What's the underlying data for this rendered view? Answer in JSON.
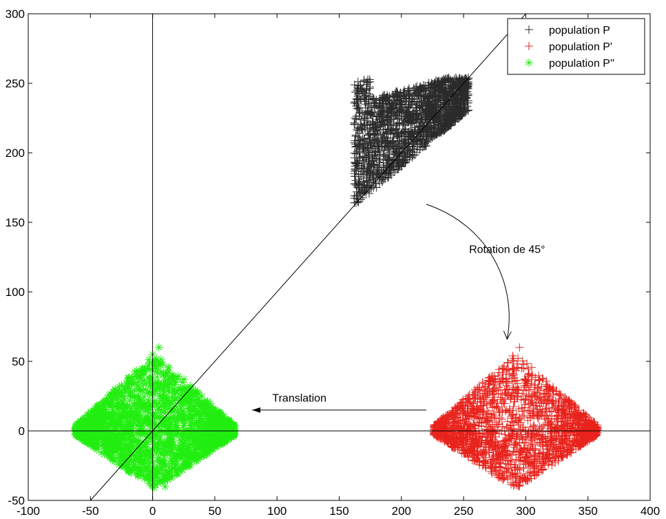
{
  "chart_data": {
    "type": "scatter",
    "title": "",
    "xlabel": "",
    "ylabel": "",
    "xlim": [
      -100,
      400
    ],
    "ylim": [
      -50,
      300
    ],
    "xticks": [
      -100,
      -50,
      0,
      50,
      100,
      150,
      200,
      250,
      300,
      350,
      400
    ],
    "yticks": [
      -50,
      0,
      50,
      100,
      150,
      200,
      250,
      300
    ],
    "xtick_labels": [
      "-100",
      "-50",
      "0",
      "50",
      "100",
      "150",
      "200",
      "250",
      "300",
      "350",
      "400"
    ],
    "ytick_labels": [
      "-50",
      "0",
      "50",
      "100",
      "150",
      "200",
      "250",
      "300"
    ],
    "grid": false,
    "legend_position": "top-right",
    "series": [
      {
        "name": "population P",
        "marker": "+",
        "color": "#2b2b2b",
        "points": [
          [
            165,
            165
          ],
          [
            180,
            175
          ],
          [
            200,
            190
          ],
          [
            220,
            205
          ],
          [
            240,
            220
          ],
          [
            250,
            245
          ],
          [
            170,
            240
          ],
          [
            230,
            250
          ],
          [
            210,
            230
          ],
          [
            190,
            200
          ]
        ],
        "extent_x": [
          160,
          255
        ],
        "extent_y": [
          160,
          255
        ]
      },
      {
        "name": "population P'",
        "marker": "+",
        "color": "#e8231c",
        "points": [
          [
            225,
            0
          ],
          [
            260,
            10
          ],
          [
            290,
            50
          ],
          [
            295,
            60
          ],
          [
            310,
            -30
          ],
          [
            330,
            20
          ],
          [
            355,
            0
          ],
          [
            300,
            -35
          ],
          [
            280,
            -20
          ],
          [
            320,
            5
          ]
        ],
        "extent_x": [
          225,
          358
        ],
        "extent_y": [
          -40,
          60
        ]
      },
      {
        "name": "population P''",
        "marker": "*",
        "color": "#22ee11",
        "points": [
          [
            -62,
            0
          ],
          [
            -30,
            30
          ],
          [
            0,
            55
          ],
          [
            5,
            60
          ],
          [
            20,
            -30
          ],
          [
            40,
            15
          ],
          [
            65,
            0
          ],
          [
            10,
            -40
          ],
          [
            -20,
            -20
          ],
          [
            30,
            -5
          ]
        ],
        "extent_x": [
          -63,
          67
        ],
        "extent_y": [
          -42,
          60
        ]
      }
    ],
    "reference_lines": [
      {
        "kind": "vertical",
        "x": 0
      },
      {
        "kind": "horizontal",
        "y": 0
      },
      {
        "kind": "diagonal",
        "from": [
          -50,
          -50
        ],
        "to": [
          300,
          300
        ]
      }
    ],
    "annotations": [
      {
        "text": "Rotation de 45°",
        "x": 285,
        "y": 128
      },
      {
        "text": "Translation",
        "x": 118,
        "y": 21
      }
    ],
    "arrows": [
      {
        "name": "rotation",
        "from": [
          220,
          163
        ],
        "to": [
          285,
          66
        ]
      },
      {
        "name": "translation",
        "from": [
          220,
          15
        ],
        "to": [
          80,
          15
        ]
      }
    ]
  }
}
